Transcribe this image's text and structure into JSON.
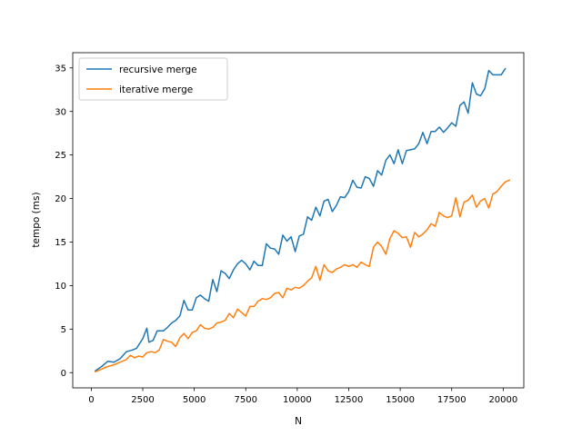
{
  "chart_data": {
    "type": "line",
    "xlabel": "N",
    "ylabel": "tempo (ms)",
    "xlim": [
      -900,
      21000
    ],
    "ylim": [
      -1.75,
      36.75
    ],
    "xticks": [
      0,
      2500,
      5000,
      7500,
      10000,
      12500,
      15000,
      17500,
      20000
    ],
    "yticks": [
      0,
      5,
      10,
      15,
      20,
      25,
      30,
      35
    ],
    "grid": false,
    "legend_position": "top-left",
    "series": [
      {
        "name": "recursive merge",
        "color": "#1f77b4",
        "points": [
          [
            200,
            0.2
          ],
          [
            500,
            0.7
          ],
          [
            800,
            1.3
          ],
          [
            1100,
            1.2
          ],
          [
            1400,
            1.6
          ],
          [
            1700,
            2.4
          ],
          [
            2000,
            2.6
          ],
          [
            2200,
            2.8
          ],
          [
            2500,
            3.9
          ],
          [
            2700,
            5.1
          ],
          [
            2800,
            3.5
          ],
          [
            3000,
            3.7
          ],
          [
            3200,
            4.8
          ],
          [
            3500,
            4.8
          ],
          [
            3700,
            5.2
          ],
          [
            3900,
            5.7
          ],
          [
            4100,
            6.0
          ],
          [
            4300,
            6.5
          ],
          [
            4500,
            8.3
          ],
          [
            4700,
            7.2
          ],
          [
            4900,
            7.2
          ],
          [
            5100,
            8.6
          ],
          [
            5300,
            8.9
          ],
          [
            5500,
            8.5
          ],
          [
            5700,
            8.2
          ],
          [
            5900,
            10.7
          ],
          [
            6100,
            9.3
          ],
          [
            6300,
            11.7
          ],
          [
            6500,
            11.4
          ],
          [
            6700,
            10.8
          ],
          [
            6900,
            11.8
          ],
          [
            7100,
            12.5
          ],
          [
            7300,
            12.9
          ],
          [
            7500,
            12.5
          ],
          [
            7700,
            11.8
          ],
          [
            7900,
            12.8
          ],
          [
            8100,
            12.3
          ],
          [
            8300,
            12.3
          ],
          [
            8500,
            14.8
          ],
          [
            8700,
            14.3
          ],
          [
            8900,
            14.2
          ],
          [
            9100,
            13.6
          ],
          [
            9300,
            15.8
          ],
          [
            9500,
            15.1
          ],
          [
            9700,
            15.6
          ],
          [
            9900,
            13.9
          ],
          [
            10100,
            15.7
          ],
          [
            10300,
            15.9
          ],
          [
            10500,
            17.9
          ],
          [
            10700,
            17.5
          ],
          [
            10900,
            19.0
          ],
          [
            11100,
            18.0
          ],
          [
            11300,
            19.7
          ],
          [
            11500,
            19.9
          ],
          [
            11700,
            18.5
          ],
          [
            11900,
            19.2
          ],
          [
            12100,
            20.2
          ],
          [
            12300,
            20.1
          ],
          [
            12500,
            20.8
          ],
          [
            12700,
            22.1
          ],
          [
            12900,
            21.3
          ],
          [
            13100,
            21.2
          ],
          [
            13300,
            22.5
          ],
          [
            13500,
            22.3
          ],
          [
            13700,
            21.4
          ],
          [
            13900,
            23.2
          ],
          [
            14100,
            22.7
          ],
          [
            14300,
            24.4
          ],
          [
            14500,
            25.0
          ],
          [
            14700,
            24.0
          ],
          [
            14900,
            25.6
          ],
          [
            15100,
            24.0
          ],
          [
            15300,
            25.5
          ],
          [
            15500,
            25.6
          ],
          [
            15700,
            25.7
          ],
          [
            15900,
            26.3
          ],
          [
            16100,
            27.6
          ],
          [
            16300,
            26.3
          ],
          [
            16500,
            27.7
          ],
          [
            16700,
            27.7
          ],
          [
            16900,
            28.2
          ],
          [
            17100,
            27.6
          ],
          [
            17300,
            28.1
          ],
          [
            17500,
            28.7
          ],
          [
            17700,
            28.3
          ],
          [
            17900,
            30.7
          ],
          [
            18100,
            31.1
          ],
          [
            18300,
            29.8
          ],
          [
            18500,
            33.3
          ],
          [
            18700,
            32.0
          ],
          [
            18900,
            31.8
          ],
          [
            19100,
            32.6
          ],
          [
            19300,
            34.7
          ],
          [
            19500,
            34.2
          ],
          [
            19700,
            34.2
          ],
          [
            19900,
            34.2
          ],
          [
            20100,
            34.9
          ]
        ]
      },
      {
        "name": "iterative merge",
        "color": "#ff7f0e",
        "points": [
          [
            200,
            0.1
          ],
          [
            500,
            0.4
          ],
          [
            800,
            0.7
          ],
          [
            1100,
            0.9
          ],
          [
            1400,
            1.2
          ],
          [
            1700,
            1.5
          ],
          [
            1900,
            2.0
          ],
          [
            2100,
            1.7
          ],
          [
            2300,
            1.9
          ],
          [
            2500,
            1.8
          ],
          [
            2700,
            2.3
          ],
          [
            2900,
            2.4
          ],
          [
            3100,
            2.3
          ],
          [
            3300,
            2.6
          ],
          [
            3500,
            3.8
          ],
          [
            3700,
            3.6
          ],
          [
            3900,
            3.5
          ],
          [
            4100,
            3.0
          ],
          [
            4300,
            4.0
          ],
          [
            4500,
            4.5
          ],
          [
            4700,
            3.9
          ],
          [
            4900,
            4.6
          ],
          [
            5100,
            4.8
          ],
          [
            5300,
            5.5
          ],
          [
            5500,
            5.1
          ],
          [
            5700,
            5.0
          ],
          [
            5900,
            5.2
          ],
          [
            6100,
            5.7
          ],
          [
            6300,
            5.8
          ],
          [
            6500,
            6.0
          ],
          [
            6700,
            6.8
          ],
          [
            6900,
            6.3
          ],
          [
            7100,
            7.3
          ],
          [
            7300,
            6.9
          ],
          [
            7500,
            6.5
          ],
          [
            7700,
            7.6
          ],
          [
            7900,
            7.6
          ],
          [
            8100,
            8.2
          ],
          [
            8300,
            8.5
          ],
          [
            8500,
            8.4
          ],
          [
            8700,
            8.6
          ],
          [
            8900,
            9.1
          ],
          [
            9100,
            9.2
          ],
          [
            9300,
            8.6
          ],
          [
            9500,
            9.7
          ],
          [
            9700,
            9.5
          ],
          [
            9900,
            9.8
          ],
          [
            10100,
            9.7
          ],
          [
            10300,
            10.0
          ],
          [
            10500,
            10.5
          ],
          [
            10700,
            10.9
          ],
          [
            10900,
            12.2
          ],
          [
            11100,
            10.6
          ],
          [
            11300,
            12.4
          ],
          [
            11500,
            11.7
          ],
          [
            11700,
            11.5
          ],
          [
            11900,
            11.9
          ],
          [
            12100,
            12.1
          ],
          [
            12300,
            12.4
          ],
          [
            12500,
            12.2
          ],
          [
            12700,
            12.4
          ],
          [
            12900,
            12.1
          ],
          [
            13100,
            12.7
          ],
          [
            13300,
            12.4
          ],
          [
            13500,
            12.2
          ],
          [
            13700,
            14.4
          ],
          [
            13900,
            15.0
          ],
          [
            14100,
            14.5
          ],
          [
            14300,
            13.6
          ],
          [
            14500,
            15.4
          ],
          [
            14700,
            16.3
          ],
          [
            14900,
            16.0
          ],
          [
            15100,
            15.5
          ],
          [
            15300,
            15.6
          ],
          [
            15500,
            14.4
          ],
          [
            15700,
            16.1
          ],
          [
            15900,
            15.6
          ],
          [
            16100,
            15.9
          ],
          [
            16300,
            16.4
          ],
          [
            16500,
            17.1
          ],
          [
            16700,
            16.8
          ],
          [
            16900,
            18.4
          ],
          [
            17100,
            18.0
          ],
          [
            17300,
            17.8
          ],
          [
            17500,
            18.0
          ],
          [
            17700,
            20.1
          ],
          [
            17900,
            17.9
          ],
          [
            18100,
            19.6
          ],
          [
            18300,
            19.8
          ],
          [
            18500,
            20.4
          ],
          [
            18700,
            19.0
          ],
          [
            18900,
            19.7
          ],
          [
            19100,
            20.0
          ],
          [
            19300,
            18.9
          ],
          [
            19500,
            20.5
          ],
          [
            19700,
            20.8
          ],
          [
            19900,
            21.4
          ],
          [
            20100,
            21.9
          ],
          [
            20300,
            22.1
          ]
        ]
      }
    ]
  }
}
